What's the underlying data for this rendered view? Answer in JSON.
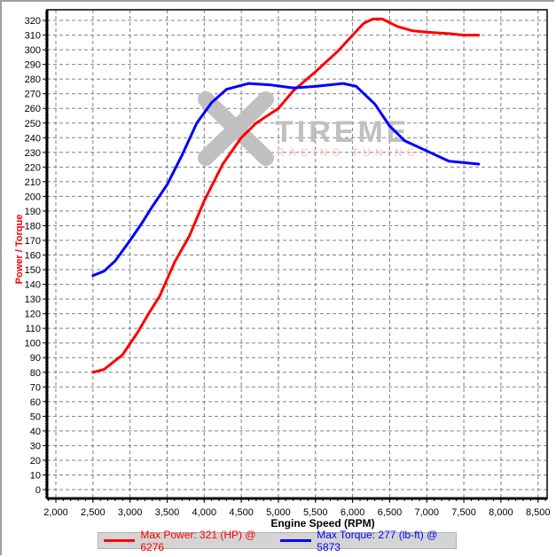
{
  "chart_data": {
    "type": "line",
    "title": "",
    "xlabel": "Engine Speed (RPM)",
    "ylabel": "Power / Torque",
    "xlim": [
      1900,
      8650
    ],
    "ylim": [
      -6,
      326
    ],
    "x_ticks": [
      "2,000",
      "2,500",
      "3,000",
      "3,500",
      "4,000",
      "4,500",
      "5,000",
      "5,500",
      "6,000",
      "6,500",
      "7,000",
      "7,500",
      "8,000",
      "8,500"
    ],
    "y_ticks": [
      "0",
      "10",
      "20",
      "30",
      "40",
      "50",
      "60",
      "70",
      "80",
      "90",
      "100",
      "110",
      "120",
      "130",
      "140",
      "150",
      "160",
      "170",
      "180",
      "190",
      "200",
      "210",
      "220",
      "230",
      "240",
      "250",
      "260",
      "270",
      "280",
      "290",
      "300",
      "310",
      "320"
    ],
    "grid": true,
    "legend_position": "bottom",
    "series": [
      {
        "name": "Max Power: 321 (HP) @ 6276",
        "color": "#ff0000",
        "x": [
          2500,
          2650,
          2900,
          3100,
          3250,
          3400,
          3600,
          3800,
          4000,
          4250,
          4500,
          4700,
          5000,
          5200,
          5500,
          5800,
          6000,
          6150,
          6276,
          6400,
          6600,
          6800,
          7000,
          7300,
          7500,
          7700
        ],
        "values": [
          80,
          82,
          92,
          107,
          120,
          132,
          155,
          173,
          197,
          222,
          240,
          250,
          260,
          272,
          285,
          299,
          310,
          318,
          321,
          321,
          316,
          313,
          312,
          311,
          310,
          310
        ]
      },
      {
        "name": "Max Torque: 277 (lb-ft) @ 5873",
        "color": "#0000ff",
        "x": [
          2500,
          2650,
          2800,
          3000,
          3150,
          3300,
          3500,
          3700,
          3900,
          4100,
          4300,
          4600,
          4900,
          5200,
          5500,
          5873,
          6050,
          6300,
          6500,
          6700,
          7000,
          7300,
          7500,
          7700
        ],
        "values": [
          146,
          149,
          156,
          170,
          181,
          193,
          208,
          228,
          250,
          264,
          273,
          277,
          276,
          274,
          275,
          277,
          275,
          263,
          248,
          238,
          231,
          224,
          223,
          222
        ]
      }
    ]
  },
  "watermark": {
    "brand": "TIREME",
    "tagline": "RACING TUNING"
  },
  "legend": {
    "power_label": "Max Power: 321 (HP) @ 6276",
    "torque_label": "Max Torque: 277 (lb-ft) @ 5873",
    "power_color": "#ff0000",
    "torque_color": "#0000ff"
  }
}
